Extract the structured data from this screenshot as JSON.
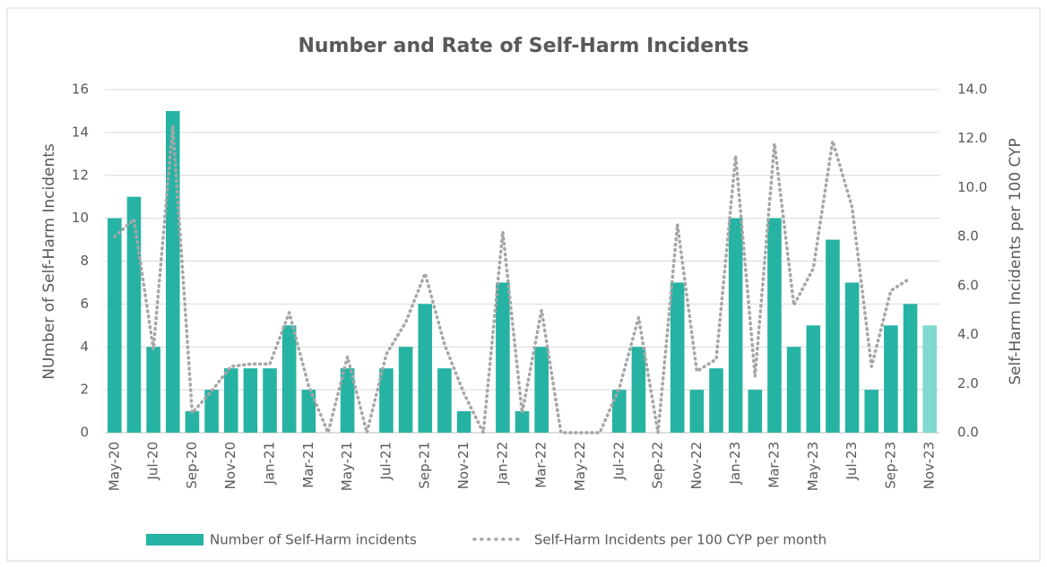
{
  "chart_data": {
    "type": "bar-line",
    "title": "Number and Rate of Self-Harm Incidents",
    "y_label": "NUmber of Self-Harm Incidents",
    "y2_label": "Self-Harm Incidents per 100 CYP",
    "categories": [
      "May-20",
      null,
      "Jul-20",
      null,
      "Sep-20",
      null,
      "Nov-20",
      null,
      "Jan-21",
      null,
      "Mar-21",
      null,
      "May-21",
      null,
      "Jul-21",
      null,
      "Sep-21",
      null,
      "Nov-21",
      null,
      "Jan-22",
      null,
      "Mar-22",
      null,
      "May-22",
      null,
      "Jul-22",
      null,
      "Sep-22",
      null,
      "Nov-22",
      null,
      "Jan-23",
      null,
      "Mar-23",
      null,
      "May-23",
      null,
      "Jul-23",
      null,
      "Sep-23",
      null,
      "Nov-23"
    ],
    "series": [
      {
        "name": "Number of Self-Harm incidents",
        "kind": "bar",
        "color": "#26b3a3",
        "colors": [
          "#26b3a3",
          "#26b3a3",
          "#26b3a3",
          "#26b3a3",
          "#26b3a3",
          "#26b3a3",
          "#26b3a3",
          "#26b3a3",
          "#26b3a3",
          "#26b3a3",
          "#26b3a3",
          "#26b3a3",
          "#26b3a3",
          "#26b3a3",
          "#26b3a3",
          "#26b3a3",
          "#26b3a3",
          "#26b3a3",
          "#26b3a3",
          "#26b3a3",
          "#26b3a3",
          "#26b3a3",
          "#26b3a3",
          "#26b3a3",
          "#26b3a3",
          "#26b3a3",
          "#26b3a3",
          "#26b3a3",
          "#26b3a3",
          "#26b3a3",
          "#26b3a3",
          "#26b3a3",
          "#26b3a3",
          "#26b3a3",
          "#26b3a3",
          "#26b3a3",
          "#26b3a3",
          "#26b3a3",
          "#26b3a3",
          "#26b3a3",
          "#26b3a3",
          "#26b3a3",
          "#7fd9cf"
        ],
        "values": [
          10,
          11,
          4,
          15,
          1,
          2,
          3,
          3,
          3,
          5,
          2,
          0,
          3,
          0,
          3,
          4,
          6,
          3,
          1,
          0,
          7,
          1,
          4,
          0,
          0,
          0,
          2,
          4,
          0,
          7,
          2,
          3,
          10,
          2,
          10,
          4,
          5,
          9,
          7,
          2,
          5,
          6,
          5
        ]
      },
      {
        "name": "Self-Harm Incidents per 100 CYP per month",
        "kind": "line",
        "axis": "y2",
        "color": "#a6a6a6",
        "values": [
          8.0,
          8.7,
          3.4,
          12.5,
          0.8,
          1.7,
          2.7,
          2.8,
          2.8,
          4.9,
          1.9,
          0,
          3.1,
          0,
          3.2,
          4.5,
          6.5,
          3.6,
          1.6,
          0,
          8.2,
          0.8,
          5.0,
          0,
          0,
          0,
          1.8,
          4.7,
          0,
          8.5,
          2.5,
          3.0,
          11.3,
          2.3,
          11.8,
          5.2,
          6.7,
          11.9,
          9.2,
          2.7,
          5.8,
          6.3,
          null
        ]
      }
    ],
    "ylim": [
      0,
      16
    ],
    "yticks": [
      0,
      2,
      4,
      6,
      8,
      10,
      12,
      14,
      16
    ],
    "y2lim": [
      0,
      14
    ],
    "y2ticks": [
      {
        "value": 0,
        "label": "0.0"
      },
      {
        "value": 2,
        "label": "2.0"
      },
      {
        "value": 4,
        "label": "4.0"
      },
      {
        "value": 6,
        "label": "6.0"
      },
      {
        "value": 8,
        "label": "8.0"
      },
      {
        "value": 10,
        "label": "10.0"
      },
      {
        "value": 12,
        "label": "12.0"
      },
      {
        "value": 14,
        "label": "14.0"
      }
    ],
    "grid": true,
    "legend": "bottom"
  }
}
